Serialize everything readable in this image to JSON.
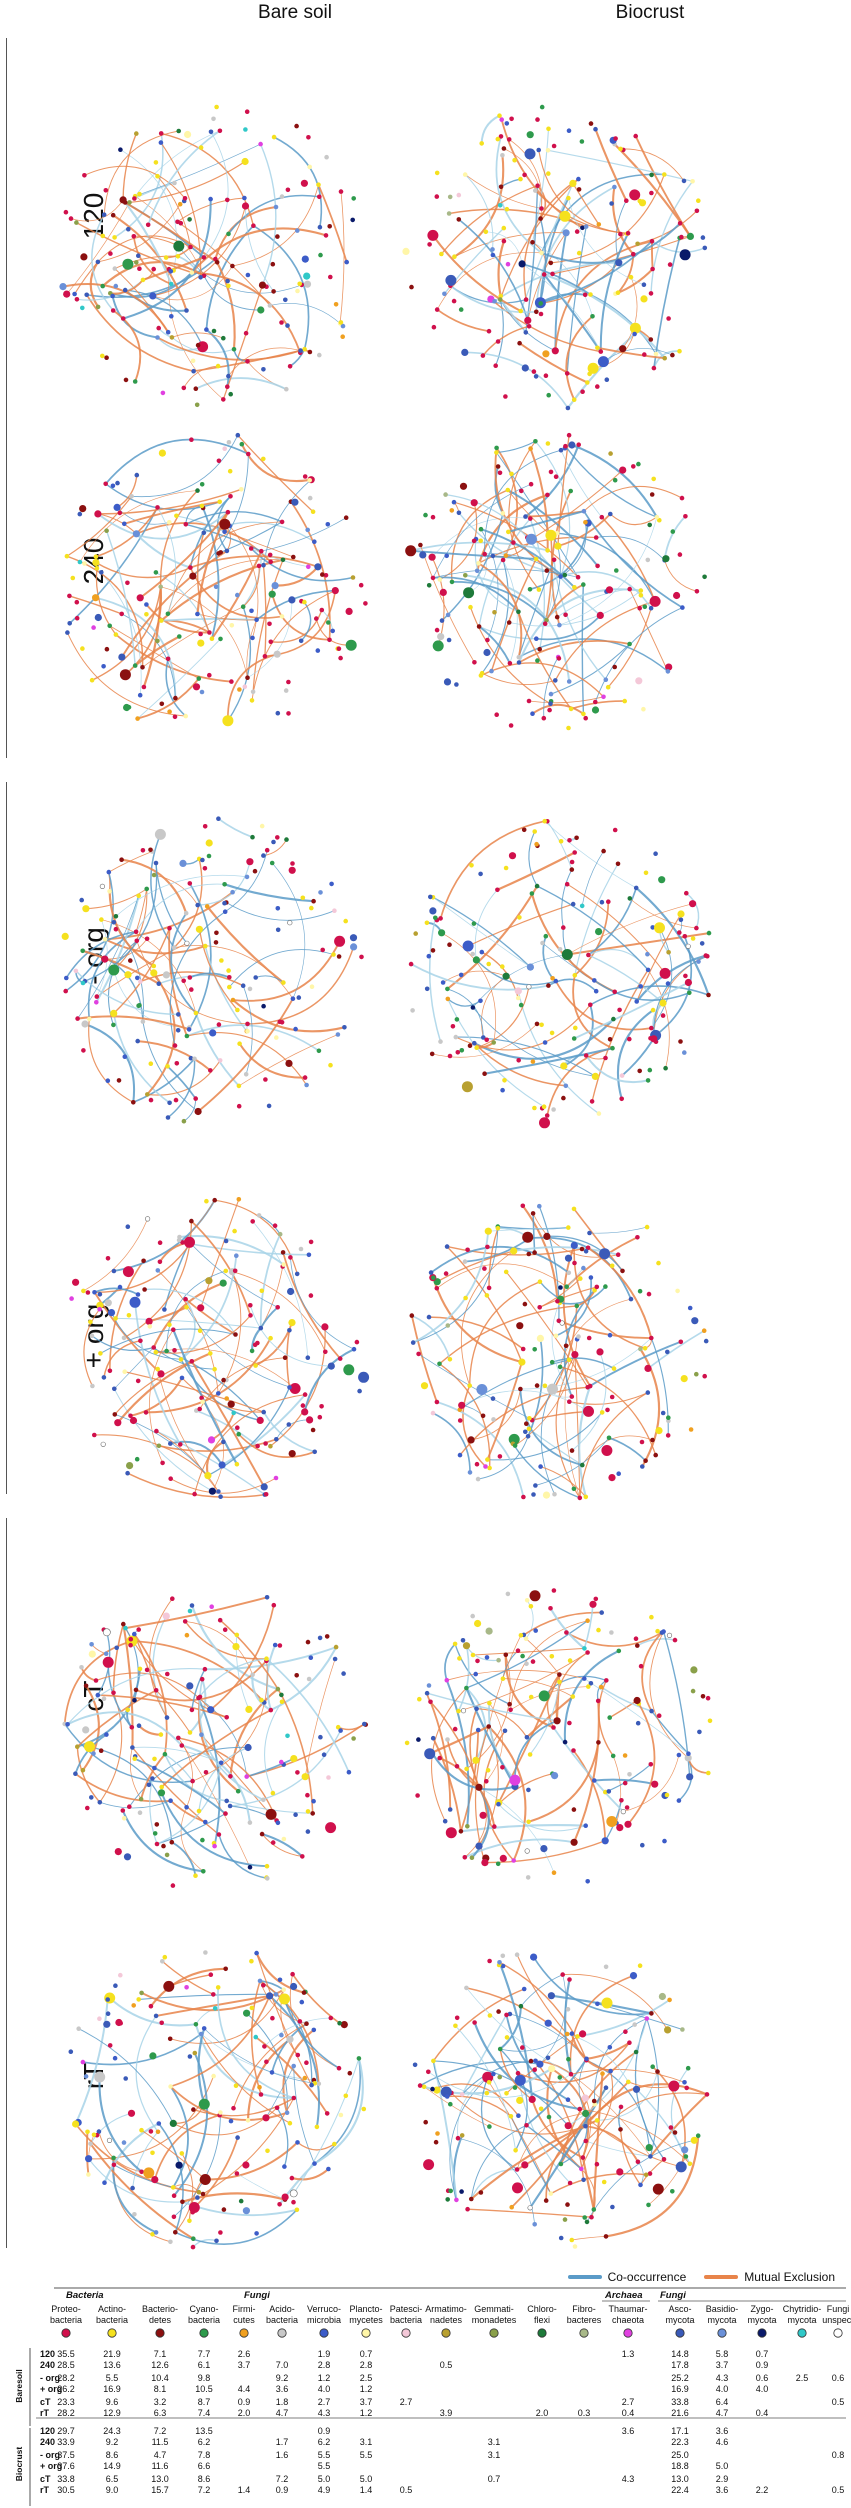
{
  "columns": [
    "Bare soil",
    "Biocrust"
  ],
  "rows": [
    "120",
    "240",
    "- org",
    "+ org",
    "cT",
    "rT"
  ],
  "legend": {
    "co_occurrence": "Co-occurrence",
    "mutual_exclusion": "Mutual Exclusion",
    "co_color": "#5b9bc8",
    "me_color": "#e8844a"
  },
  "table": {
    "groups": [
      "Bacteria",
      "Fungi",
      "Archaea",
      "Fungi"
    ],
    "side_labels": [
      "Baresoil",
      "Biocrust"
    ],
    "taxa": [
      {
        "line1": "Proteo-",
        "line2": "bacteria",
        "color": "#d0104c"
      },
      {
        "line1": "Actino-",
        "line2": "bacteria",
        "color": "#f5e11e"
      },
      {
        "line1": "Bacterio-",
        "line2": "detes",
        "color": "#8b1010"
      },
      {
        "line1": "Cyano-",
        "line2": "bacteria",
        "color": "#2e9a4c"
      },
      {
        "line1": "Firmi-",
        "line2": "cutes",
        "color": "#f0a020"
      },
      {
        "line1": "Acido-",
        "line2": "bacteria",
        "color": "#c8c8c8"
      },
      {
        "line1": "Verruco-",
        "line2": "microbia",
        "color": "#3c5cc8"
      },
      {
        "line1": "Plancto-",
        "line2": "mycetes",
        "color": "#fff6a8"
      },
      {
        "line1": "Patesci-",
        "line2": "bacteria",
        "color": "#f4c8d8"
      },
      {
        "line1": "Armatimo-",
        "line2": "nadetes",
        "color": "#b8a030"
      },
      {
        "line1": "Gemmati-",
        "line2": "monadetes",
        "color": "#8aa04a"
      },
      {
        "line1": "Chloro-",
        "line2": "flexi",
        "color": "#1e7a3a"
      },
      {
        "line1": "Fibro-",
        "line2": "bacteres",
        "color": "#a8b888"
      },
      {
        "line1": "Thaumar-",
        "line2": "chaeota",
        "color": "#e040e0"
      },
      {
        "line1": "Asco-",
        "line2": "mycota",
        "color": "#3a5ab8"
      },
      {
        "line1": "Basidio-",
        "line2": "mycota",
        "color": "#6a90d8"
      },
      {
        "line1": "Zygo-",
        "line2": "mycota",
        "color": "#0a1a6a"
      },
      {
        "line1": "Chytridio-",
        "line2": "mycota",
        "color": "#30c8c8"
      },
      {
        "line1": "Fungi",
        "line2": "unspec.",
        "color": "#ffffff"
      }
    ],
    "rows": [
      {
        "label": "120",
        "bold": true,
        "vals": [
          "35.5",
          "21.9",
          "7.1",
          "7.7",
          "2.6",
          "",
          "1.9",
          "0.7",
          "",
          "",
          "",
          "",
          "",
          "1.3",
          "14.8",
          "5.8",
          "0.7",
          "",
          ""
        ]
      },
      {
        "label": "240",
        "bold": true,
        "vals": [
          "28.5",
          "13.6",
          "12.6",
          "6.1",
          "3.7",
          "7.0",
          "2.8",
          "2.8",
          "",
          "0.5",
          "",
          "",
          "",
          "",
          "17.8",
          "3.7",
          "0.9",
          "",
          ""
        ]
      },
      {
        "label": "- org",
        "bold": false,
        "vals": [
          "28.2",
          "5.5",
          "10.4",
          "9.8",
          "",
          "9.2",
          "1.2",
          "2.5",
          "",
          "",
          "",
          "",
          "",
          "",
          "25.2",
          "4.3",
          "0.6",
          "2.5",
          "0.6"
        ]
      },
      {
        "label": "+ org",
        "bold": false,
        "vals": [
          "26.2",
          "16.9",
          "8.1",
          "10.5",
          "4.4",
          "3.6",
          "4.0",
          "1.2",
          "",
          "",
          "",
          "",
          "",
          "",
          "16.9",
          "4.0",
          "4.0",
          "",
          ""
        ]
      },
      {
        "label": "cT",
        "bold": false,
        "vals": [
          "23.3",
          "9.6",
          "3.2",
          "8.7",
          "0.9",
          "1.8",
          "2.7",
          "3.7",
          "2.7",
          "",
          "",
          "",
          "",
          "2.7",
          "33.8",
          "6.4",
          "",
          "",
          "0.5"
        ]
      },
      {
        "label": "rT",
        "bold": false,
        "vals": [
          "28.2",
          "12.9",
          "6.3",
          "7.4",
          "2.0",
          "4.7",
          "4.3",
          "1.2",
          "",
          "3.9",
          "",
          "2.0",
          "0.3",
          "0.4",
          "21.6",
          "4.7",
          "0.4",
          "",
          ""
        ]
      },
      {
        "label": "120",
        "bold": true,
        "vals": [
          "29.7",
          "24.3",
          "7.2",
          "13.5",
          "",
          "",
          "0.9",
          "",
          "",
          "",
          "",
          "",
          "",
          "3.6",
          "17.1",
          "3.6",
          "",
          "",
          ""
        ]
      },
      {
        "label": "240",
        "bold": true,
        "vals": [
          "33.9",
          "9.2",
          "11.5",
          "6.2",
          "",
          "1.7",
          "6.2",
          "3.1",
          "",
          "",
          "3.1",
          "",
          "",
          "",
          "22.3",
          "4.6",
          "",
          "",
          ""
        ]
      },
      {
        "label": "- org",
        "bold": false,
        "vals": [
          "37.5",
          "8.6",
          "4.7",
          "7.8",
          "",
          "1.6",
          "5.5",
          "5.5",
          "",
          "",
          "3.1",
          "",
          "",
          "",
          "25.0",
          "",
          "",
          "",
          "0.8"
        ]
      },
      {
        "label": "+ org",
        "bold": false,
        "vals": [
          "37.6",
          "14.9",
          "11.6",
          "6.6",
          "",
          "",
          "5.5",
          "",
          "",
          "",
          "",
          "",
          "",
          "",
          "18.8",
          "5.0",
          "",
          "",
          ""
        ]
      },
      {
        "label": "cT",
        "bold": false,
        "vals": [
          "33.8",
          "6.5",
          "13.0",
          "8.6",
          "",
          "7.2",
          "5.0",
          "5.0",
          "",
          "",
          "0.7",
          "",
          "",
          "4.3",
          "13.0",
          "2.9",
          "",
          "",
          ""
        ]
      },
      {
        "label": "rT",
        "bold": false,
        "vals": [
          "30.5",
          "9.0",
          "15.7",
          "7.2",
          "1.4",
          "0.9",
          "4.9",
          "1.4",
          "0.5",
          "",
          "",
          "",
          "",
          "",
          "22.4",
          "3.6",
          "2.2",
          "",
          "0.5"
        ]
      }
    ]
  }
}
